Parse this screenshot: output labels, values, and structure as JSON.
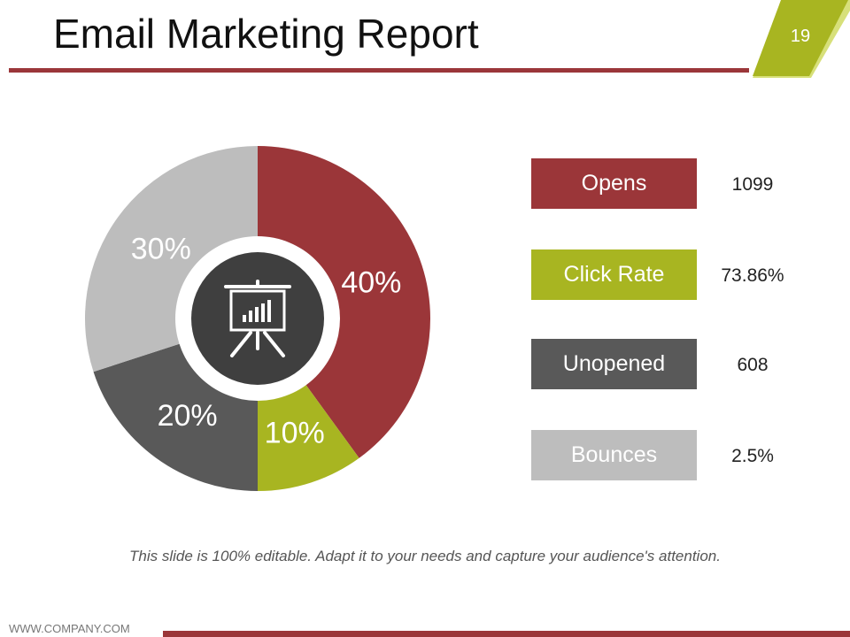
{
  "slide": {
    "title": "Email Marketing Report",
    "page_number": "19",
    "caption": "This slide is 100% editable. Adapt it to your needs and capture your audience's attention.",
    "footer": "WWW.COMPANY.COM"
  },
  "chart_data": {
    "type": "pie",
    "variant": "donut",
    "center_icon": "presentation-board-icon",
    "slices": [
      {
        "label": "40%",
        "value": 40,
        "color": "#9b3639"
      },
      {
        "label": "10%",
        "value": 10,
        "color": "#a8b521"
      },
      {
        "label": "20%",
        "value": 20,
        "color": "#595959"
      },
      {
        "label": "30%",
        "value": 30,
        "color": "#bdbdbd"
      }
    ]
  },
  "metrics": [
    {
      "label": "Opens",
      "value": "1099",
      "color": "#9b3639"
    },
    {
      "label": "Click Rate",
      "value": "73.86%",
      "color": "#a8b521"
    },
    {
      "label": "Unopened",
      "value": "608",
      "color": "#595959"
    },
    {
      "label": "Bounces",
      "value": "2.5%",
      "color": "#bdbdbd"
    }
  ],
  "colors": {
    "accent": "#9b3639",
    "green": "#a8b521",
    "dark": "#595959",
    "light": "#bdbdbd",
    "icon_bg": "#3f3f3f"
  }
}
